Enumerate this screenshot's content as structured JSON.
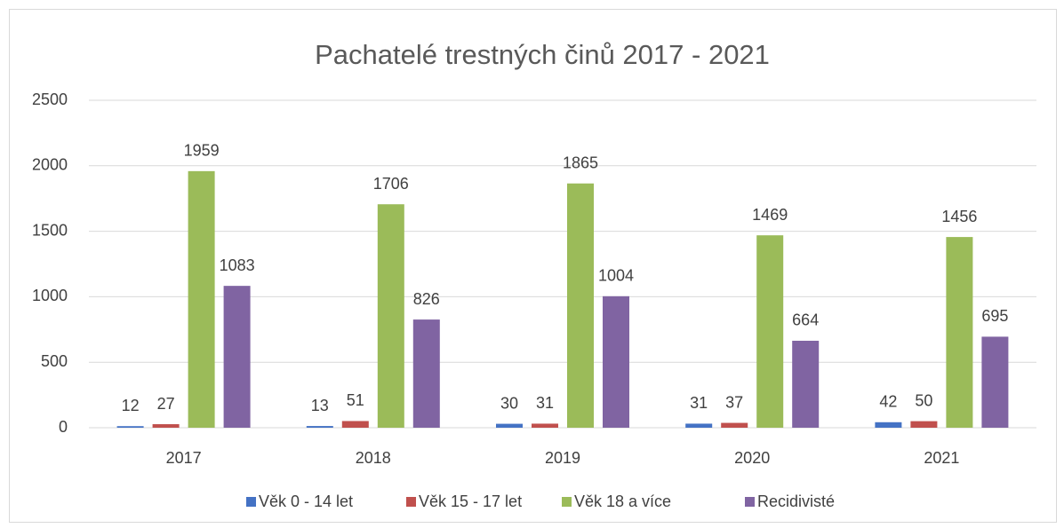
{
  "chart_data": {
    "type": "bar",
    "title": "Pachatelé trestných činů 2017 - 2021",
    "categories": [
      "2017",
      "2018",
      "2019",
      "2020",
      "2021"
    ],
    "series": [
      {
        "name": "Věk 0 - 14 let",
        "color": "#4472c4",
        "values": [
          12,
          13,
          30,
          31,
          42
        ]
      },
      {
        "name": "Věk 15 - 17 let",
        "color": "#c0504d",
        "values": [
          27,
          51,
          31,
          37,
          50
        ]
      },
      {
        "name": "Věk 18 a více",
        "color": "#9bbb59",
        "values": [
          1959,
          1706,
          1865,
          1469,
          1456
        ]
      },
      {
        "name": "Recidivisté",
        "color": "#8064a2",
        "values": [
          1083,
          826,
          1004,
          664,
          695
        ]
      }
    ],
    "ylim": [
      0,
      2500
    ],
    "yticks": [
      0,
      500,
      1000,
      1500,
      2000,
      2500
    ],
    "grid": true,
    "legend": "bottom"
  }
}
